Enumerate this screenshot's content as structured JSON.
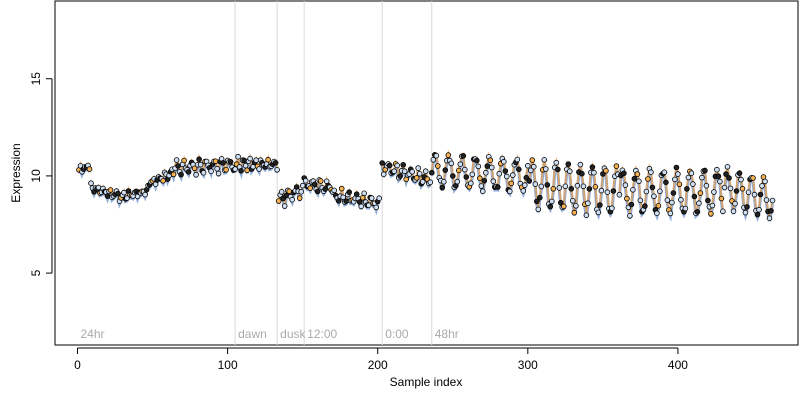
{
  "chart_data": {
    "type": "scatter",
    "title": "",
    "xlabel": "Sample index",
    "ylabel": "Expression",
    "xlim": [
      -15,
      480
    ],
    "ylim": [
      1.3,
      19
    ],
    "x_ticks": [
      0,
      100,
      200,
      300,
      400
    ],
    "y_ticks": [
      5,
      10,
      15
    ],
    "grid": false,
    "legend": "none",
    "colors": {
      "point_fill_light": "#cfe0f5",
      "point_fill_orange": "#f5b254",
      "point_fill_dark": "#222222",
      "point_stroke": "#000000",
      "line_blue": "#7c9dd1",
      "line_orange": "#e6a252",
      "marker_line": "#d9d9d9",
      "marker_text": "#aaaaaa"
    },
    "markers": [
      {
        "x": 0,
        "label": "24hr"
      },
      {
        "x": 105,
        "label": "dawn"
      },
      {
        "x": 133,
        "label": "dusk"
      },
      {
        "x": 151,
        "label": "12:00"
      },
      {
        "x": 203,
        "label": "0:00"
      },
      {
        "x": 236,
        "label": "48hr"
      }
    ],
    "segments": [
      {
        "x0": 1,
        "x1": 8,
        "shape": "flat",
        "a": 10.3,
        "b": 10.5,
        "amp": 0.15,
        "per": 4
      },
      {
        "x0": 9,
        "x1": 26,
        "shape": "flat",
        "a": 9.4,
        "b": 9.0,
        "amp": 0.2,
        "per": 4
      },
      {
        "x0": 27,
        "x1": 46,
        "shape": "flat",
        "a": 8.9,
        "b": 9.2,
        "amp": 0.15,
        "per": 4
      },
      {
        "x0": 47,
        "x1": 62,
        "shape": "flat",
        "a": 9.6,
        "b": 10.1,
        "amp": 0.2,
        "per": 4
      },
      {
        "x0": 63,
        "x1": 104,
        "shape": "flat",
        "a": 10.4,
        "b": 10.6,
        "amp": 0.3,
        "per": 5
      },
      {
        "x0": 105,
        "x1": 133,
        "shape": "flat",
        "a": 10.6,
        "b": 10.6,
        "amp": 0.25,
        "per": 4
      },
      {
        "x0": 134,
        "x1": 150,
        "shape": "flat",
        "a": 8.8,
        "b": 9.3,
        "amp": 0.3,
        "per": 5
      },
      {
        "x0": 151,
        "x1": 170,
        "shape": "flat",
        "a": 9.6,
        "b": 9.4,
        "amp": 0.25,
        "per": 5
      },
      {
        "x0": 171,
        "x1": 201,
        "shape": "flat",
        "a": 9.0,
        "b": 8.6,
        "amp": 0.25,
        "per": 5
      },
      {
        "x0": 203,
        "x1": 235,
        "shape": "flat",
        "a": 10.5,
        "b": 9.8,
        "amp": 0.3,
        "per": 5
      },
      {
        "x0": 236,
        "x1": 300,
        "shape": "wave",
        "a": 10.3,
        "b": 10.0,
        "amp": 0.8,
        "per": 9
      },
      {
        "x0": 301,
        "x1": 360,
        "shape": "wave",
        "a": 9.6,
        "b": 9.2,
        "amp": 1.2,
        "per": 8
      },
      {
        "x0": 361,
        "x1": 430,
        "shape": "wave",
        "a": 9.2,
        "b": 9.2,
        "amp": 1.1,
        "per": 9
      },
      {
        "x0": 431,
        "x1": 463,
        "shape": "wave",
        "a": 9.4,
        "b": 8.8,
        "amp": 1.0,
        "per": 8
      }
    ]
  }
}
